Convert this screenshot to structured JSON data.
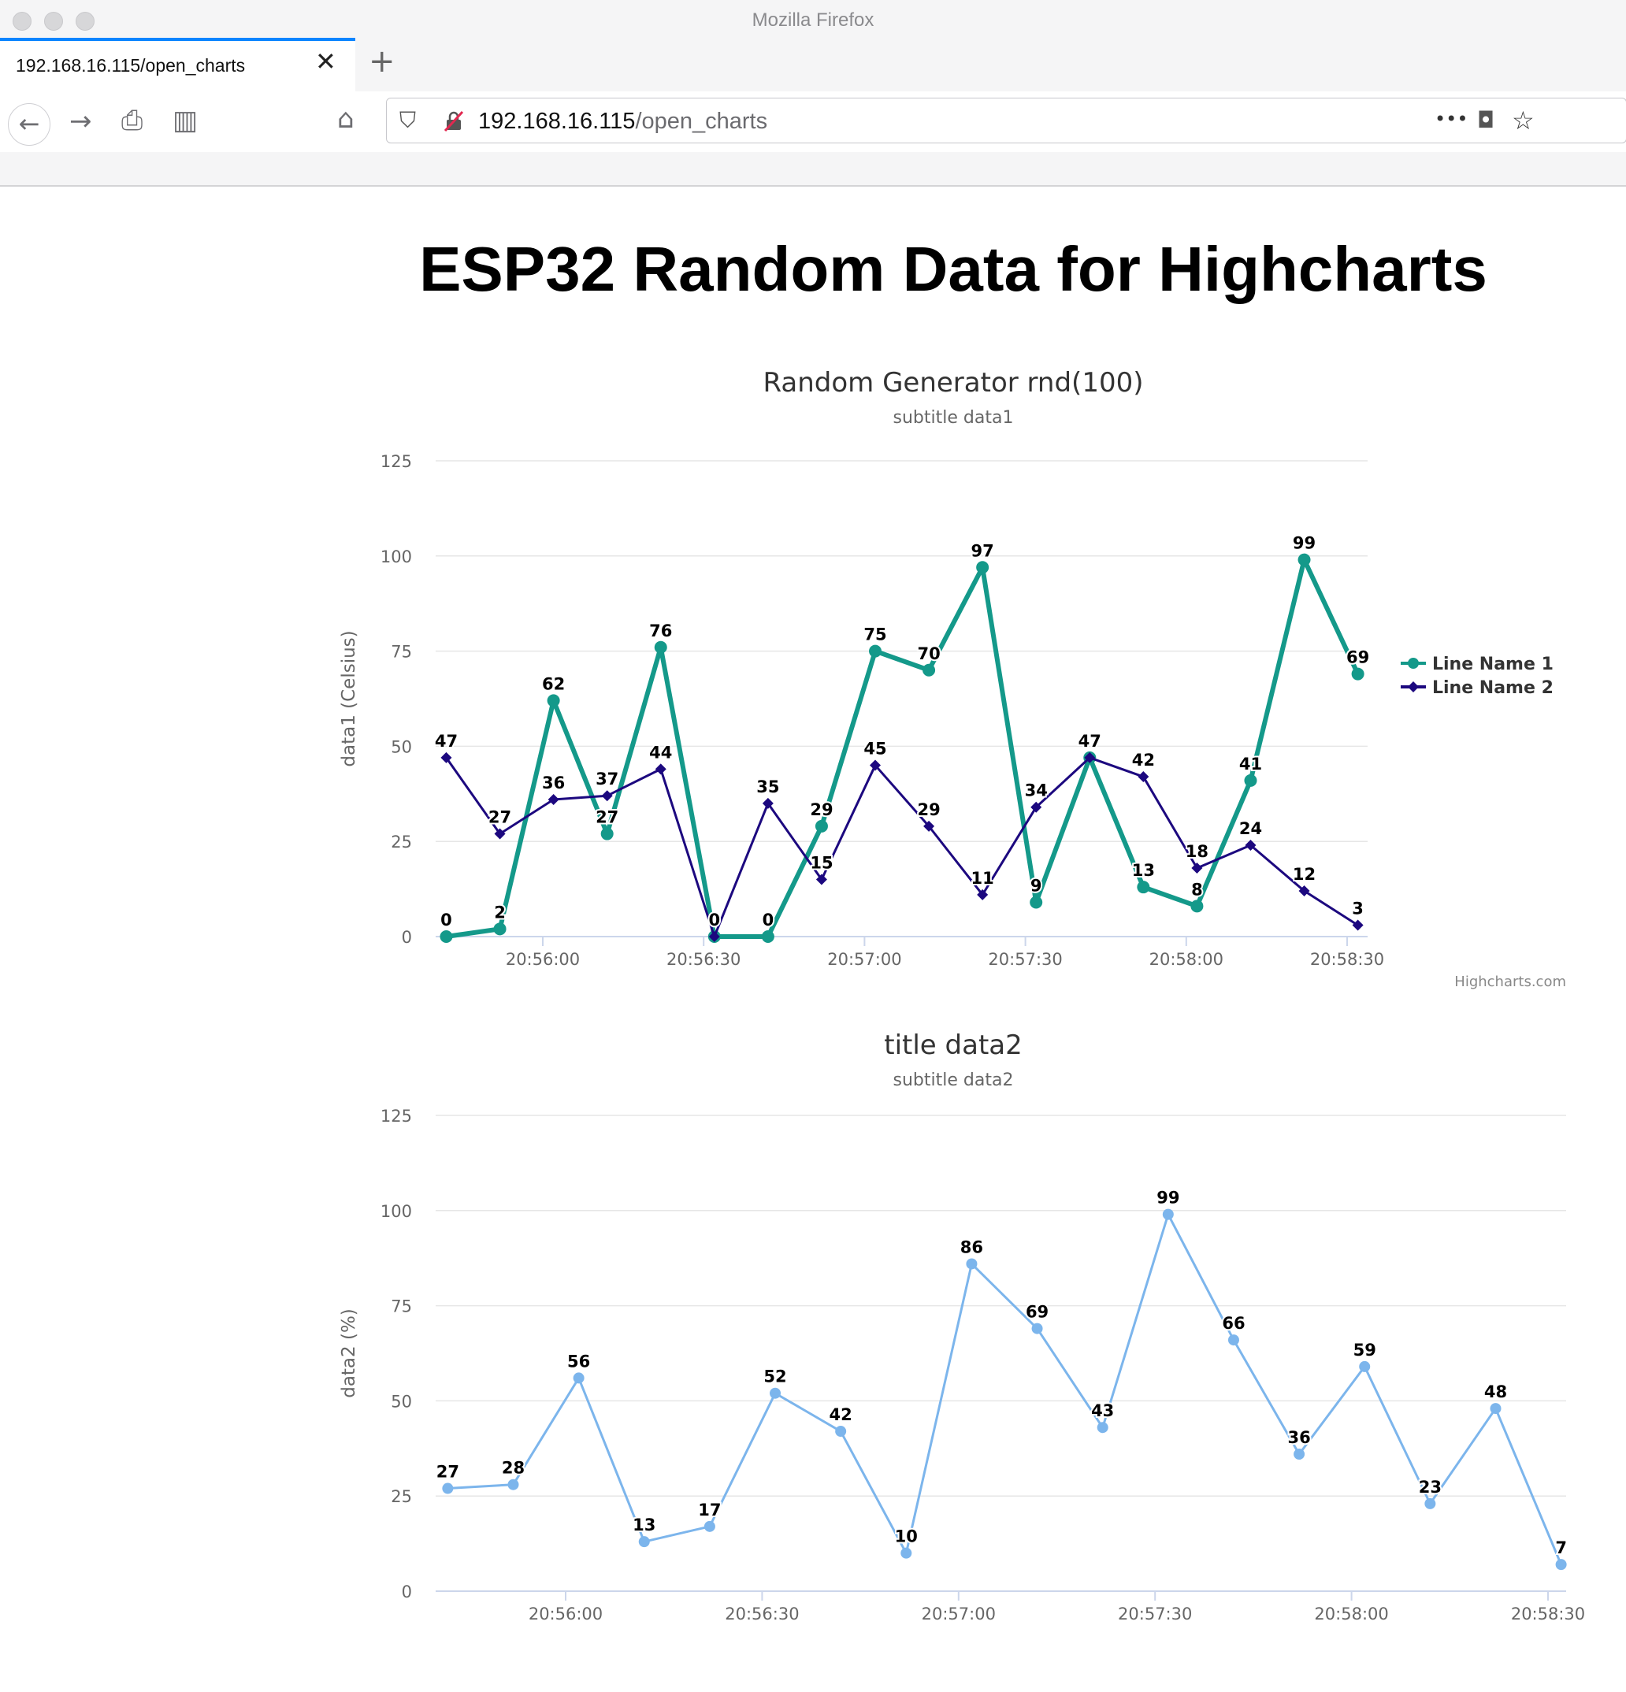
{
  "window": {
    "title": "Mozilla Firefox"
  },
  "tab": {
    "label": "192.168.16.115/open_charts",
    "close": "✕",
    "new_tab": "+"
  },
  "nav": {
    "back": "←",
    "forward": "→",
    "print": "⎙",
    "reader": "▥",
    "home": "⌂",
    "reload": "↻"
  },
  "url": {
    "host": "192.168.16.115",
    "path": "/open_charts",
    "more": "•••",
    "pocket": "◘",
    "star": "☆",
    "shield": "⛉"
  },
  "page": {
    "title": "ESP32 Random Data for Highcharts"
  },
  "chart_data": [
    {
      "type": "line",
      "title": "Random Generator rnd(100)",
      "subtitle": "subtitle data1",
      "ylabel": "data1 (Celsius)",
      "ylim": [
        0,
        125
      ],
      "yticks": [
        "0",
        "25",
        "50",
        "75",
        "100",
        "125"
      ],
      "xticks": [
        "20:56:00",
        "20:56:30",
        "20:57:00",
        "20:57:30",
        "20:58:00",
        "20:58:30"
      ],
      "x": [
        "20:55:42",
        "20:55:52",
        "20:56:02",
        "20:56:12",
        "20:56:22",
        "20:56:32",
        "20:56:42",
        "20:56:52",
        "20:57:02",
        "20:57:12",
        "20:57:22",
        "20:57:32",
        "20:57:42",
        "20:57:52",
        "20:58:02",
        "20:58:12",
        "20:58:22",
        "20:58:32"
      ],
      "series": [
        {
          "name": "Line Name 1",
          "color": "#14998a",
          "values": [
            0,
            2,
            62,
            27,
            76,
            0,
            0,
            29,
            75,
            70,
            97,
            9,
            47,
            13,
            8,
            41,
            99,
            69
          ]
        },
        {
          "name": "Line Name 2",
          "color": "#1c087f",
          "values": [
            47,
            27,
            36,
            37,
            44,
            0,
            35,
            15,
            45,
            29,
            11,
            34,
            47,
            42,
            18,
            24,
            12,
            3
          ]
        }
      ],
      "legend": "right",
      "credit": "Highcharts.com"
    },
    {
      "type": "line",
      "title": "title data2",
      "subtitle": "subtitle data2",
      "ylabel": "data2 (%)",
      "ylim": [
        0,
        125
      ],
      "yticks": [
        "0",
        "25",
        "50",
        "75",
        "100",
        "125"
      ],
      "xticks": [
        "20:56:00",
        "20:56:30",
        "20:57:00",
        "20:57:30",
        "20:58:00",
        "20:58:30"
      ],
      "x": [
        "20:55:42",
        "20:55:52",
        "20:56:02",
        "20:56:12",
        "20:56:22",
        "20:56:32",
        "20:56:42",
        "20:56:52",
        "20:57:02",
        "20:57:12",
        "20:57:22",
        "20:57:32",
        "20:57:42",
        "20:57:52",
        "20:58:02",
        "20:58:12",
        "20:58:22",
        "20:58:32"
      ],
      "series": [
        {
          "color": "#7cb5ec",
          "values": [
            27,
            28,
            56,
            13,
            17,
            52,
            42,
            10,
            86,
            69,
            43,
            99,
            66,
            36,
            59,
            23,
            48,
            7
          ]
        }
      ],
      "legend": "none"
    }
  ]
}
